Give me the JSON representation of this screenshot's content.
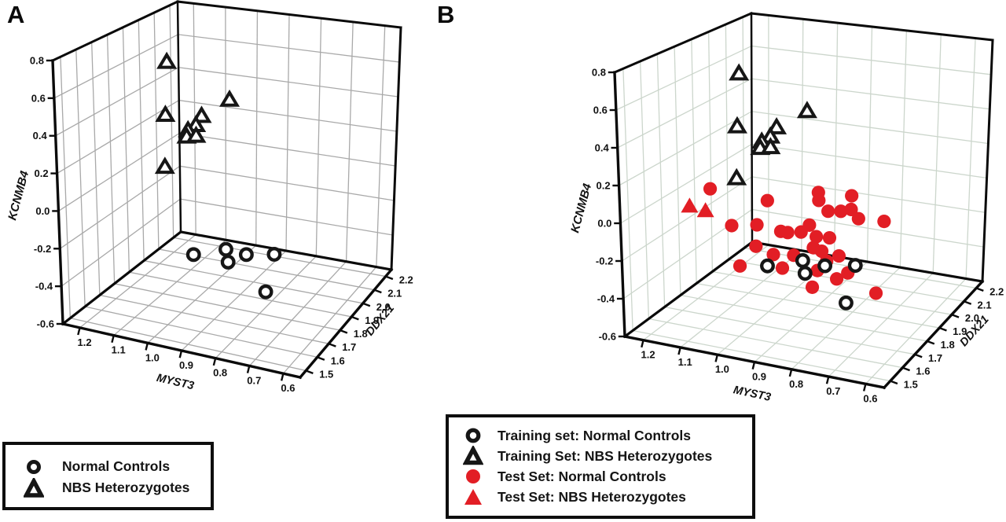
{
  "figure": {
    "panels": [
      {
        "letter": "A"
      },
      {
        "letter": "B"
      }
    ]
  },
  "colors": {
    "test_red": "#e21e25",
    "marker_black": "#161616",
    "edge_black": "#0a0a0a",
    "grid_gray_a": "#a9a9a9",
    "grid_green_b": "#ccd6cc",
    "tick_text": "#111111"
  },
  "chart_data": [
    {
      "type": "scatter",
      "subtype": "scatter3d",
      "panel": "A",
      "axes": {
        "x": {
          "label": "MYST3",
          "ticks": [
            "1.2",
            "1.1",
            "1.0",
            "0.9",
            "0.8",
            "0.7",
            "0.6"
          ],
          "range": [
            1.25,
            0.55
          ]
        },
        "y": {
          "label": "DDX21",
          "ticks": [
            "1.5",
            "1.6",
            "1.7",
            "1.8",
            "1.9",
            "2.0",
            "2.1",
            "2.2"
          ],
          "range": [
            1.45,
            2.25
          ]
        },
        "z": {
          "label": "KCNMB4",
          "ticks": [
            "0.8",
            "0.6",
            "0.4",
            "0.2",
            "0.0",
            "-0.2",
            "-0.4",
            "-0.6"
          ],
          "range": [
            -0.6,
            0.8
          ]
        }
      },
      "grid": true,
      "series": [
        {
          "name": "Normal Controls",
          "marker": "open-circle",
          "color": "#161616",
          "zorder": 1,
          "points": [
            [
              0.95,
              1.68,
              -0.25
            ],
            [
              0.88,
              1.75,
              -0.24
            ],
            [
              0.87,
              1.74,
              -0.3
            ],
            [
              0.83,
              1.78,
              -0.27
            ],
            [
              0.76,
              1.82,
              -0.27
            ],
            [
              0.76,
              1.75,
              -0.43
            ]
          ]
        },
        {
          "name": "NBS Heterozygotes",
          "marker": "open-triangle",
          "color": "#161616",
          "zorder": 2,
          "points": [
            [
              1.09,
              1.84,
              0.68
            ],
            [
              0.9,
              1.84,
              0.53
            ],
            [
              1.07,
              1.78,
              0.42
            ],
            [
              1.0,
              1.87,
              0.39
            ],
            [
              1.0,
              1.83,
              0.36
            ],
            [
              1.02,
              1.82,
              0.33
            ],
            [
              1.02,
              1.81,
              0.3
            ],
            [
              1.0,
              1.83,
              0.3
            ],
            [
              1.03,
              1.68,
              0.2
            ]
          ]
        }
      ]
    },
    {
      "type": "scatter",
      "subtype": "scatter3d",
      "panel": "B",
      "axes": {
        "x": {
          "label": "MYST3",
          "ticks": [
            "1.2",
            "1.1",
            "1.0",
            "0.9",
            "0.8",
            "0.7",
            "0.6"
          ],
          "range": [
            1.25,
            0.55
          ]
        },
        "y": {
          "label": "DDX21",
          "ticks": [
            "1.5",
            "1.6",
            "1.7",
            "1.8",
            "1.9",
            "2.0",
            "2.1",
            "2.2"
          ],
          "range": [
            1.45,
            2.25
          ]
        },
        "z": {
          "label": "KCNMB4",
          "ticks": [
            "0.8",
            "0.6",
            "0.4",
            "0.2",
            "0.0",
            "-0.2",
            "-0.4",
            "-0.6"
          ],
          "range": [
            -0.6,
            0.8
          ]
        }
      },
      "grid": true,
      "series": [
        {
          "name": "Test Set: Normal Controls",
          "marker": "filled-circle",
          "color": "#e21e25",
          "zorder": 1,
          "points": [
            [
              1.21,
              1.91,
              -0.05
            ],
            [
              1.11,
              2.05,
              -0.17
            ],
            [
              1.15,
              1.91,
              -0.24
            ],
            [
              0.97,
              2.07,
              -0.09
            ],
            [
              0.96,
              2.05,
              -0.12
            ],
            [
              0.92,
              2.02,
              -0.15
            ],
            [
              0.9,
              2.06,
              -0.17
            ],
            [
              0.89,
              2.11,
              -0.11
            ],
            [
              0.87,
              2.06,
              -0.15
            ],
            [
              0.84,
              2.04,
              -0.18
            ],
            [
              0.79,
              2.1,
              -0.22
            ],
            [
              1.1,
              1.96,
              -0.25
            ],
            [
              1.04,
              1.98,
              -0.28
            ],
            [
              1.02,
              1.98,
              -0.28
            ],
            [
              0.99,
              2.0,
              -0.28
            ],
            [
              0.97,
              2.01,
              -0.24
            ],
            [
              0.95,
              2.01,
              -0.3
            ],
            [
              0.92,
              2.03,
              -0.31
            ],
            [
              0.95,
              1.99,
              -0.35
            ],
            [
              0.93,
              2.0,
              -0.37
            ],
            [
              0.88,
              2.0,
              -0.38
            ],
            [
              1.09,
              1.93,
              -0.35
            ],
            [
              1.04,
              1.93,
              -0.38
            ],
            [
              0.99,
              1.95,
              -0.38
            ],
            [
              1.01,
              1.92,
              -0.44
            ],
            [
              0.93,
              1.97,
              -0.46
            ],
            [
              0.85,
              1.99,
              -0.46
            ],
            [
              0.92,
              2.01,
              -0.43
            ],
            [
              0.87,
              1.96,
              -0.48
            ],
            [
              0.92,
              1.91,
              -0.51
            ],
            [
              1.11,
              1.87,
              -0.43
            ],
            [
              0.76,
              1.97,
              -0.53
            ]
          ]
        },
        {
          "name": "Test Set: NBS Heterozygotes",
          "marker": "filled-triangle",
          "color": "#e21e25",
          "zorder": 2,
          "points": [
            [
              1.1,
              1.54,
              0.1
            ],
            [
              1.07,
              1.57,
              0.07
            ]
          ]
        },
        {
          "name": "Training set: Normal Controls",
          "marker": "open-circle",
          "color": "#161616",
          "zorder": 3,
          "points": [
            [
              0.95,
              1.68,
              -0.25
            ],
            [
              0.88,
              1.75,
              -0.24
            ],
            [
              0.87,
              1.74,
              -0.3
            ],
            [
              0.83,
              1.78,
              -0.27
            ],
            [
              0.76,
              1.82,
              -0.27
            ],
            [
              0.76,
              1.75,
              -0.43
            ]
          ]
        },
        {
          "name": "Training Set: NBS Heterozygotes",
          "marker": "open-triangle",
          "color": "#161616",
          "zorder": 4,
          "points": [
            [
              1.09,
              1.84,
              0.68
            ],
            [
              0.9,
              1.84,
              0.53
            ],
            [
              1.07,
              1.78,
              0.42
            ],
            [
              1.0,
              1.87,
              0.39
            ],
            [
              1.0,
              1.83,
              0.36
            ],
            [
              1.02,
              1.82,
              0.33
            ],
            [
              1.02,
              1.81,
              0.3
            ],
            [
              1.0,
              1.83,
              0.3
            ],
            [
              1.03,
              1.68,
              0.2
            ]
          ]
        }
      ]
    }
  ],
  "legend_a": {
    "items": [
      {
        "marker": "open-circle",
        "label": "Normal Controls"
      },
      {
        "marker": "open-triangle",
        "label": "NBS Heterozygotes"
      }
    ]
  },
  "legend_b": {
    "items": [
      {
        "marker": "open-circle",
        "label": "Training set: Normal Controls"
      },
      {
        "marker": "open-triangle",
        "label": "Training Set: NBS Heterozygotes"
      },
      {
        "marker": "filled-circle",
        "label": "Test Set: Normal Controls"
      },
      {
        "marker": "filled-triangle",
        "label": "Test Set: NBS Heterozygotes"
      }
    ]
  }
}
